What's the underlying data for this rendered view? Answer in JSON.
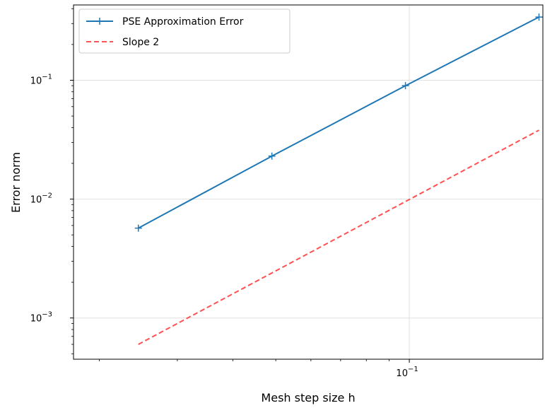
{
  "chart_data": {
    "type": "line",
    "title": "",
    "xlabel": "Mesh step size h",
    "ylabel": "Error norm",
    "xscale": "log",
    "yscale": "log",
    "xlim": [
      0.0175,
      0.2
    ],
    "ylim": [
      0.00045,
      0.43
    ],
    "grid": true,
    "legend_position": "top-left",
    "x_ticks": [
      {
        "value": 0.1,
        "label": "10",
        "exp": "−1"
      }
    ],
    "y_ticks": [
      {
        "value": 0.001,
        "label": "10",
        "exp": "−3"
      },
      {
        "value": 0.01,
        "label": "10",
        "exp": "−2"
      },
      {
        "value": 0.1,
        "label": "10",
        "exp": "−1"
      }
    ],
    "series": [
      {
        "name": "PSE Approximation Error",
        "color": "#1f77b4",
        "linestyle": "solid",
        "marker": "+",
        "x": [
          0.0245,
          0.049,
          0.098,
          0.196
        ],
        "y": [
          0.0057,
          0.023,
          0.09,
          0.34
        ]
      },
      {
        "name": "Slope 2",
        "color": "#ff3333",
        "linestyle": "dashed",
        "marker": "none",
        "x": [
          0.0245,
          0.196
        ],
        "y": [
          0.0006,
          0.038
        ]
      }
    ]
  }
}
